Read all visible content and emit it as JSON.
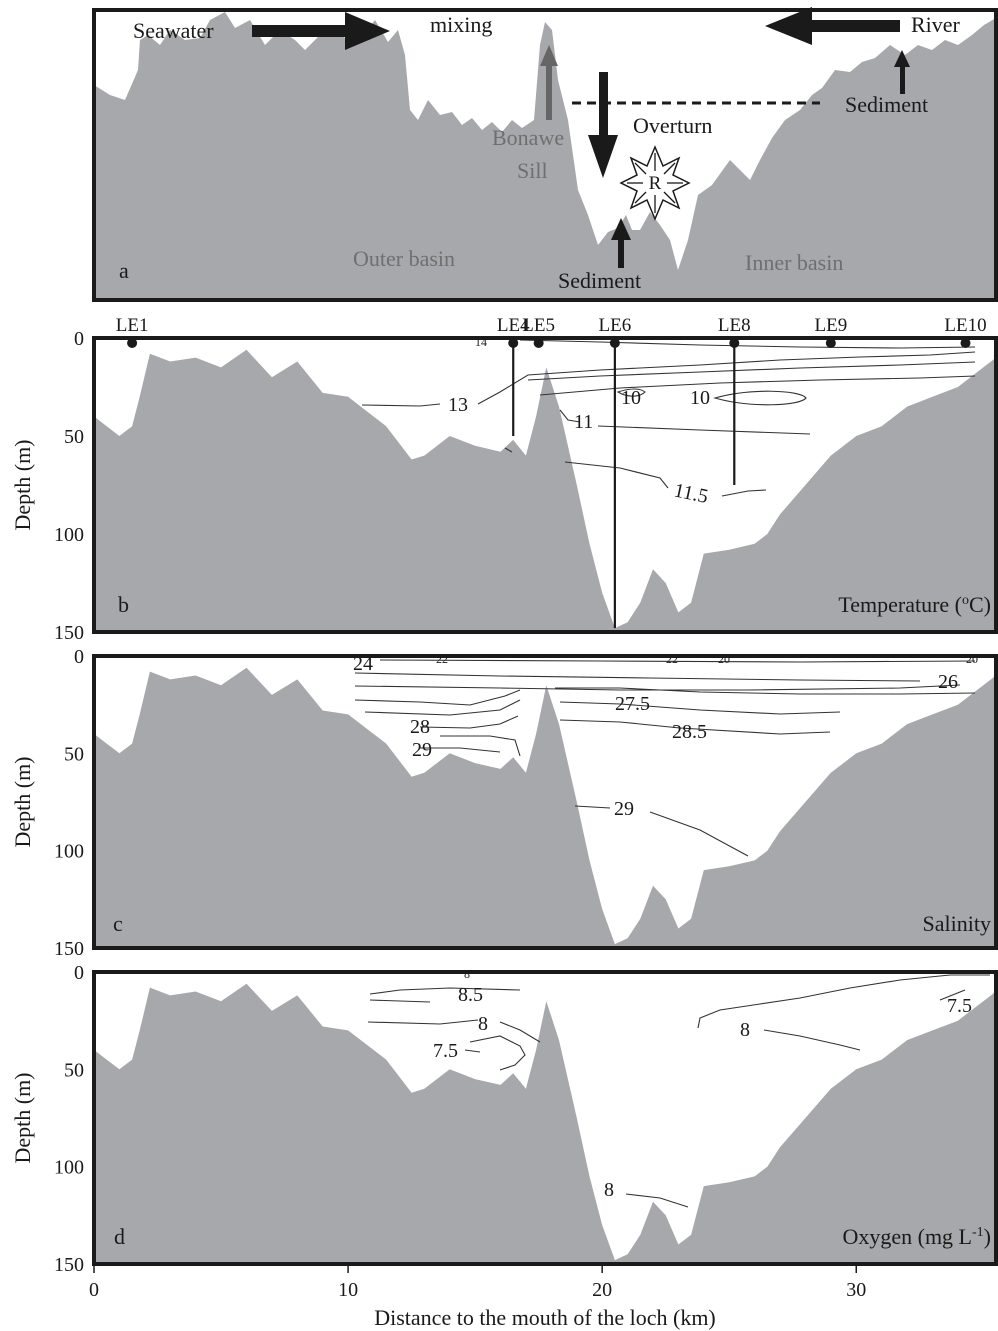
{
  "colors": {
    "bathymetry": "#a7a8ab",
    "frame": "#1a1a1a",
    "grey_text": "#6f6f6f",
    "arrow": "#1a1a1a",
    "sill_arrow": "#666666"
  },
  "panel_a": {
    "letter": "a",
    "seawater": "Seawater",
    "mixing": "mixing",
    "river": "River",
    "sediment_right": "Sediment",
    "sediment_bottom": "Sediment",
    "overturn": "Overturn",
    "bonawe": "Bonawe",
    "sill": "Sill",
    "respiration_symbol": "R",
    "outer_basin": "Outer basin",
    "inner_basin": "Inner basin",
    "icons": [
      "arrow-right",
      "arrow-left",
      "arrow-up",
      "arrow-down",
      "dashed-line",
      "star-burst"
    ]
  },
  "stations": [
    {
      "name": "LE1",
      "km": 1.5,
      "max_depth_m": 0
    },
    {
      "name": "LE4",
      "km": 16.5,
      "max_depth_m": 50
    },
    {
      "name": "LE5",
      "km": 17.5,
      "max_depth_m": 0
    },
    {
      "name": "LE6",
      "km": 20.5,
      "max_depth_m": 148
    },
    {
      "name": "LE8",
      "km": 25.2,
      "max_depth_m": 75
    },
    {
      "name": "LE9",
      "km": 29.0,
      "max_depth_m": 0
    },
    {
      "name": "LE10",
      "km": 34.3,
      "max_depth_m": 0
    }
  ],
  "panel_b": {
    "letter": "b",
    "variable": "Temperature (",
    "unit_sup": "o",
    "unit_end": "C)",
    "contour_labels": [
      "13",
      "11",
      "10",
      "10",
      "11.5",
      "14"
    ]
  },
  "panel_c": {
    "letter": "c",
    "variable": "Salinity",
    "contour_labels": [
      "24",
      "22",
      "22",
      "20",
      "26",
      "27.5",
      "28",
      "29",
      "28.5",
      "29",
      "20"
    ]
  },
  "panel_d": {
    "letter": "d",
    "variable": "Oxygen (mg L",
    "unit_sup": "-1",
    "unit_end": ")",
    "contour_labels": [
      "8.5",
      "8",
      "7.5",
      "8",
      "7.5",
      "8",
      "8"
    ]
  },
  "chart_data": {
    "type": "area",
    "xlabel": "Distance to the mouth of the loch (km)",
    "ylabel": "Depth (m)",
    "xlim": [
      0,
      35.5
    ],
    "ylim": [
      150,
      0
    ],
    "x_ticks": [
      "0",
      "10",
      "20",
      "30"
    ],
    "y_ticks": [
      "0",
      "50",
      "100",
      "150"
    ],
    "y_axis_inverted": true,
    "bathymetry_depth_m": {
      "x": [
        0,
        0.5,
        1.0,
        1.5,
        1.8,
        2.2,
        3.0,
        4.0,
        5.0,
        6.0,
        7.0,
        8.0,
        9.0,
        10.0,
        10.5,
        11.5,
        12.5,
        13.0,
        14.0,
        15.0,
        16.0,
        16.5,
        17.0,
        17.4,
        17.8,
        18.3,
        19.0,
        19.5,
        20.0,
        20.5,
        21.0,
        21.5,
        22.0,
        22.5,
        23.0,
        23.5,
        24.0,
        25.0,
        26.0,
        26.5,
        27.0,
        28.0,
        29.0,
        30.0,
        31.0,
        32.0,
        33.0,
        34.0,
        35.0,
        35.5
      ],
      "depth": [
        40,
        45,
        50,
        45,
        30,
        8,
        12,
        10,
        15,
        6,
        20,
        12,
        28,
        30,
        35,
        45,
        62,
        60,
        50,
        55,
        58,
        52,
        60,
        40,
        15,
        35,
        75,
        105,
        130,
        148,
        145,
        135,
        118,
        125,
        140,
        135,
        110,
        108,
        105,
        100,
        90,
        75,
        60,
        50,
        45,
        35,
        30,
        25,
        15,
        10
      ]
    },
    "panels": [
      {
        "name": "Temperature",
        "unit": "oC",
        "contour_labels": [
          "13",
          "11",
          "10",
          "10",
          "11.5",
          "14"
        ]
      },
      {
        "name": "Salinity",
        "unit": "",
        "contour_labels": [
          "24",
          "22",
          "22",
          "20",
          "26",
          "27.5",
          "28",
          "29",
          "28.5",
          "29",
          "20"
        ]
      },
      {
        "name": "Oxygen",
        "unit": "mg L-1",
        "contour_labels": [
          "8.5",
          "8",
          "7.5",
          "8",
          "7.5",
          "8",
          "8"
        ]
      }
    ]
  }
}
